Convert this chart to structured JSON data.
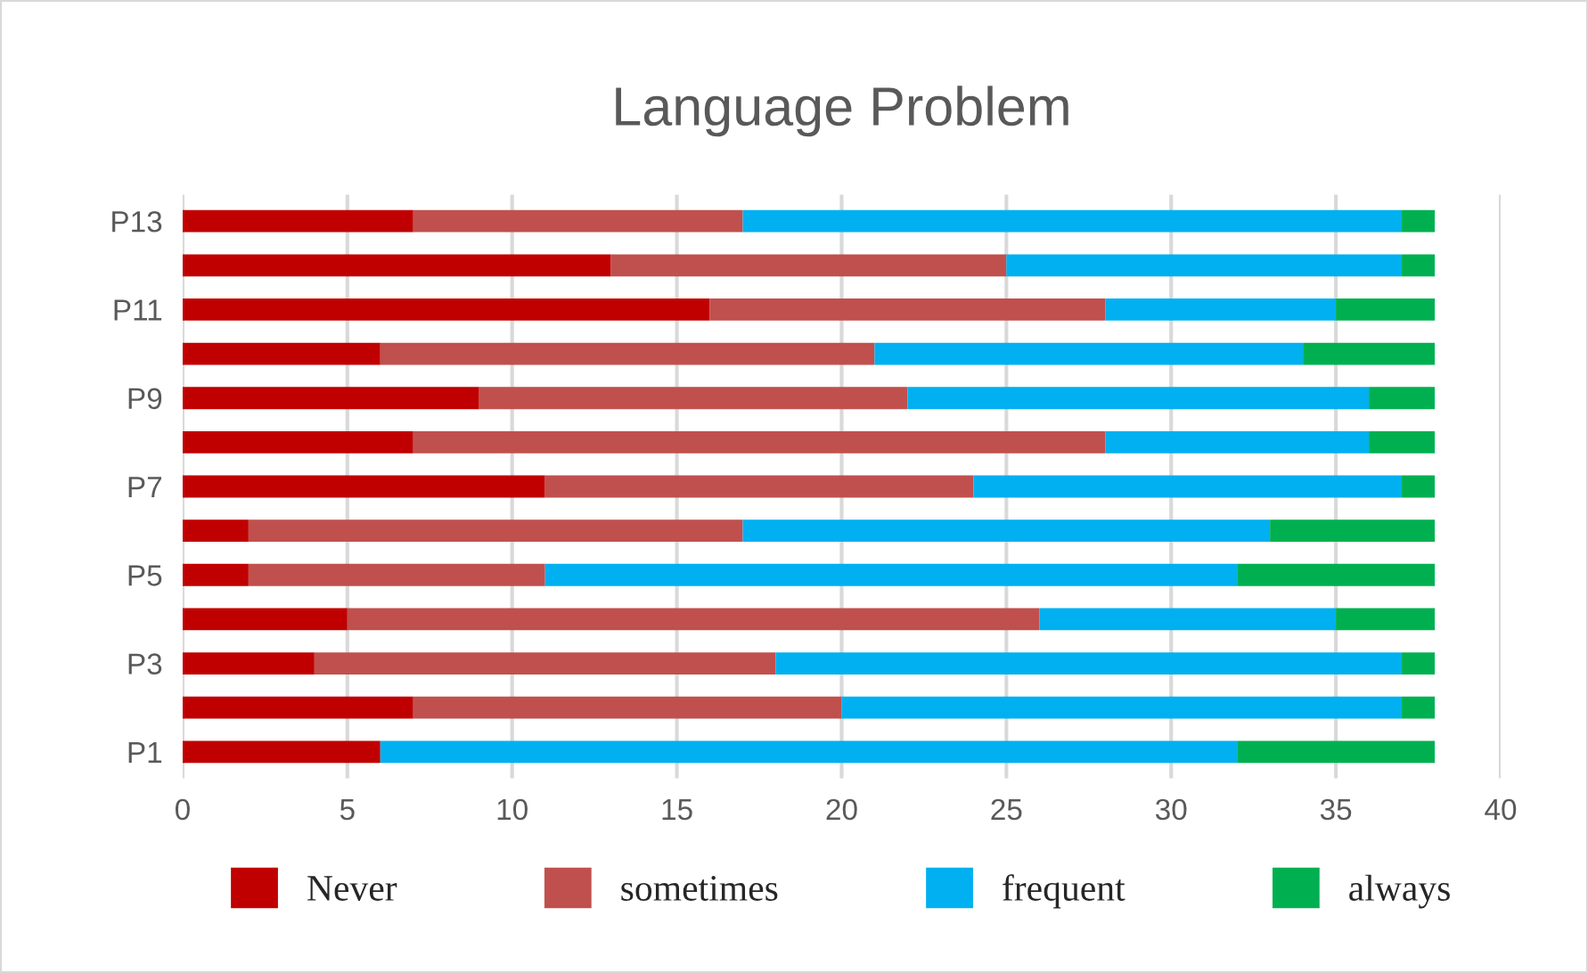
{
  "chart_data": {
    "type": "bar",
    "orientation": "horizontal",
    "stacked": true,
    "title": "Language Problem",
    "categories": [
      "P13",
      null,
      "P11",
      null,
      "P9",
      null,
      "P7",
      null,
      "P5",
      null,
      "P3",
      null,
      "P1"
    ],
    "series": [
      {
        "name": "Never",
        "color": "#c00000",
        "values": [
          7,
          13,
          16,
          6,
          9,
          7,
          11,
          2,
          2,
          5,
          4,
          7,
          6
        ]
      },
      {
        "name": "sometimes",
        "color": "#c0504d",
        "values": [
          10,
          12,
          12,
          15,
          13,
          21,
          13,
          15,
          9,
          21,
          14,
          13,
          0
        ]
      },
      {
        "name": "frequent",
        "color": "#00b0f0",
        "values": [
          20,
          12,
          7,
          13,
          14,
          8,
          13,
          16,
          21,
          9,
          19,
          17,
          26
        ]
      },
      {
        "name": "always",
        "color": "#00b050",
        "values": [
          1,
          1,
          3,
          4,
          2,
          2,
          1,
          5,
          6,
          3,
          1,
          1,
          6
        ]
      }
    ],
    "xlim": [
      0,
      40
    ],
    "xticks": [
      0,
      5,
      10,
      15,
      20,
      25,
      30,
      35,
      40
    ],
    "grid": "x",
    "legend": "bottom"
  }
}
